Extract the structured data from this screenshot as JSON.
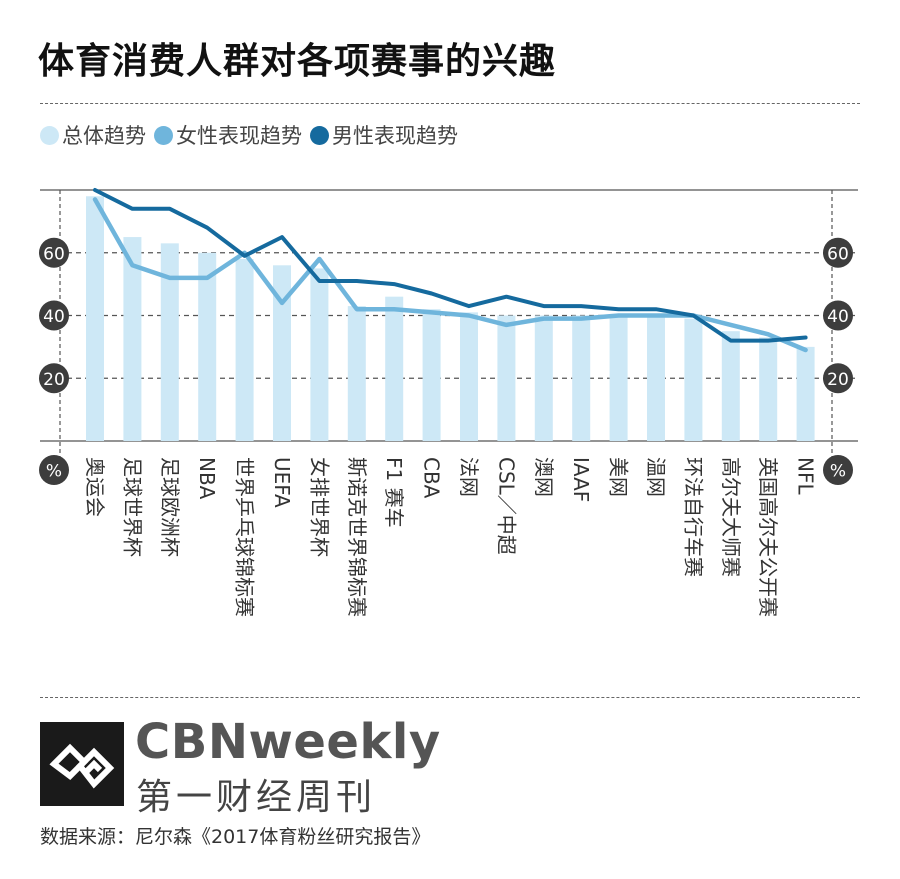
{
  "title": "体育消费人群对各项赛事的兴趣",
  "legend": [
    {
      "label": "总体趋势",
      "color": "#cde8f6"
    },
    {
      "label": "女性表现趋势",
      "color": "#6fb5dc"
    },
    {
      "label": "男性表现趋势",
      "color": "#156a9e"
    }
  ],
  "chart_data": {
    "type": "bar",
    "categories": [
      "奥运会",
      "足球世界杯",
      "足球欧洲杯",
      "NBA",
      "世界乒乓球锦标赛",
      "UEFA",
      "女排世界杯",
      "斯诺克世界锦标赛",
      "F1赛车",
      "CBA",
      "法网",
      "CSL/中超",
      "澳网",
      "IAAF",
      "美网",
      "温网",
      "环法自行车赛",
      "高尔夫大师赛",
      "英国高尔夫公开赛",
      "NFL"
    ],
    "category_labels": [
      "奥运会",
      "足球世界杯",
      "足球欧洲杯",
      "NBA",
      "世界乒乓球锦标赛",
      "UEFA",
      "女排世界杯",
      "斯诺克世界锦标赛",
      "F1 赛车",
      "CBA",
      "法网",
      "CSL／中超",
      "澳网",
      "IAAF",
      "美网",
      "温网",
      "环法自行车赛",
      "高尔夫大师赛",
      "英国高尔夫公开赛",
      "NFL"
    ],
    "series": [
      {
        "name": "总体趋势",
        "kind": "bar",
        "color": "#cde8f6",
        "values": [
          78,
          65,
          63,
          60,
          58,
          56,
          55,
          43,
          46,
          42,
          41,
          40,
          40,
          40,
          40,
          40,
          39,
          35,
          33,
          30
        ]
      },
      {
        "name": "女性表现趋势",
        "kind": "line",
        "color": "#6fb5dc",
        "values": [
          77,
          56,
          52,
          52,
          60,
          44,
          58,
          42,
          42,
          41,
          40,
          37,
          39,
          39,
          40,
          40,
          40,
          37,
          34,
          29
        ]
      },
      {
        "name": "男性表现趋势",
        "kind": "line",
        "color": "#156a9e",
        "values": [
          80,
          74,
          74,
          68,
          59,
          65,
          51,
          51,
          50,
          47,
          43,
          46,
          43,
          43,
          42,
          42,
          40,
          32,
          32,
          33
        ]
      }
    ],
    "ytick_labels": [
      20,
      40,
      60
    ],
    "ylim": [
      0,
      80
    ],
    "unit_label": "%",
    "grid": true
  },
  "brand": {
    "name": "CBNweekly",
    "cn": "第一财经周刊"
  },
  "source": "数据来源：尼尔森《2017体育粉丝研究报告》"
}
